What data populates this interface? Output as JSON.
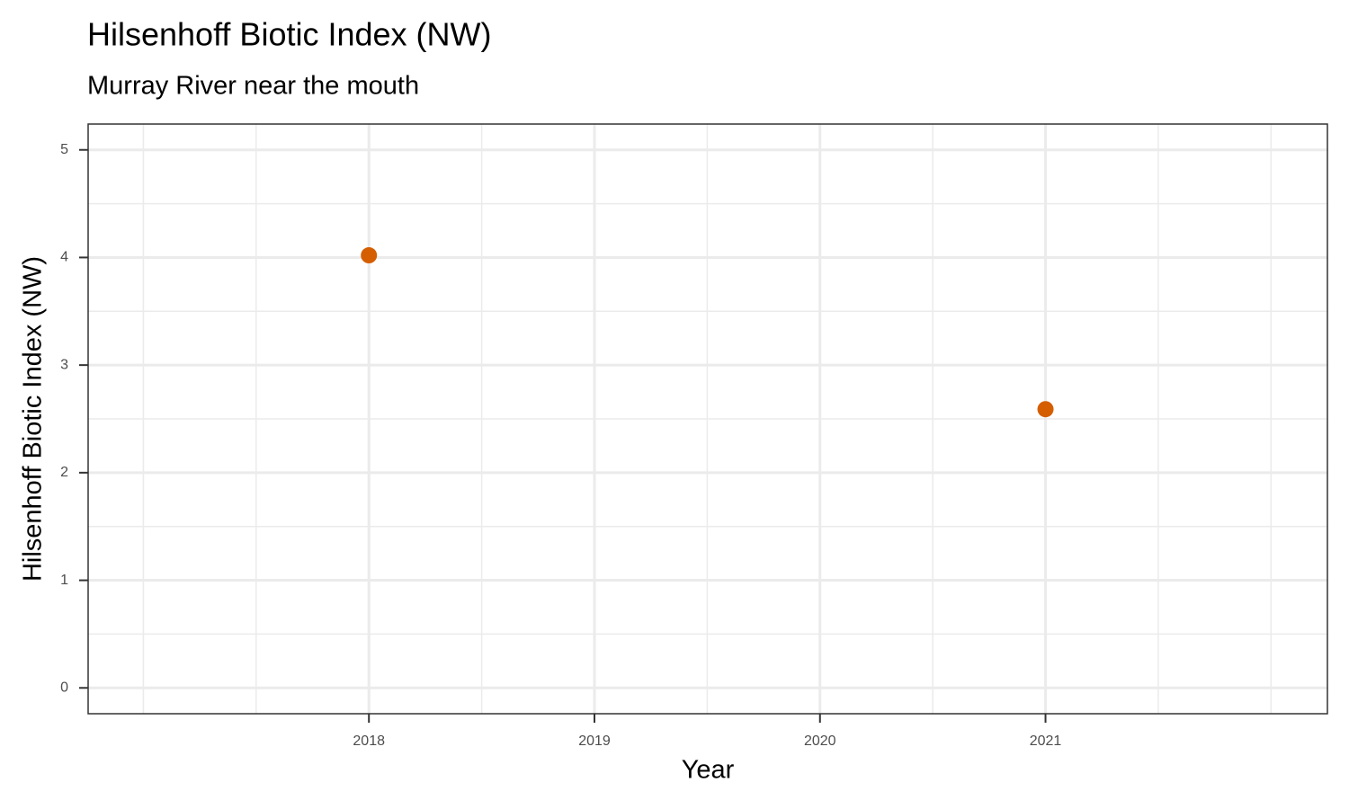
{
  "chart_data": {
    "type": "scatter",
    "title": "Hilsenhoff Biotic Index (NW)",
    "subtitle": "Murray River near the mouth",
    "x_label": "Year",
    "y_label": "Hilsenhoff Biotic Index (NW)",
    "x": [
      2018,
      2021
    ],
    "values": [
      4.02,
      2.59
    ],
    "color": "#d55e00",
    "xlim": [
      2016.755,
      2022.25
    ],
    "ylim": [
      -0.24,
      5.24
    ],
    "xticks": [
      2018,
      2019,
      2020,
      2021
    ],
    "yticks": [
      0,
      1,
      2,
      3,
      4,
      5
    ],
    "x_minor_ticks": [
      2017,
      2017.5,
      2018.5,
      2019.5,
      2020.5,
      2021.5,
      2022
    ],
    "y_minor_ticks": [
      0.5,
      1.5,
      2.5,
      3.5,
      4.5
    ],
    "grid": true
  }
}
